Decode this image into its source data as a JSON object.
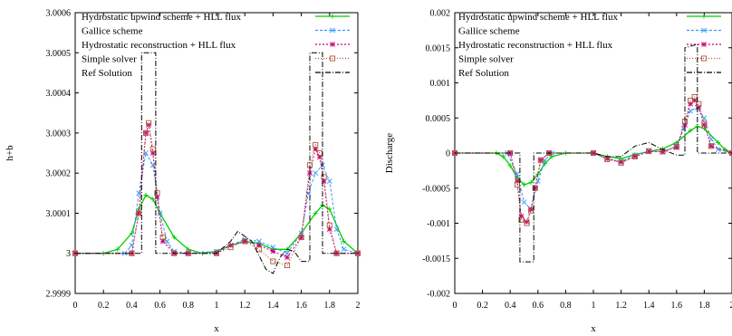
{
  "chart_data": [
    {
      "type": "line",
      "xlabel": "x",
      "ylabel": "h+b",
      "xlim": [
        0,
        2
      ],
      "ylim": [
        2.9999,
        3.0006
      ],
      "xticks": [
        "0",
        "0.2",
        "0.4",
        "0.6",
        "0.8",
        "1",
        "1.2",
        "1.4",
        "1.6",
        "1.8",
        "2"
      ],
      "yticks": [
        "2.9999",
        "3",
        "3.0001",
        "3.0002",
        "3.0003",
        "3.0004",
        "3.0005",
        "3.0006"
      ],
      "legend_position": "top-left",
      "series": [
        {
          "name": "Hydrostatic upwind scheme + HLL flux",
          "color": "#00cc00",
          "marker": "plus",
          "x": [
            0,
            0.2,
            0.3,
            0.4,
            0.45,
            0.5,
            0.55,
            0.6,
            0.7,
            0.8,
            0.9,
            1.0,
            1.1,
            1.2,
            1.3,
            1.4,
            1.5,
            1.6,
            1.7,
            1.75,
            1.8,
            1.9,
            2.0
          ],
          "y": [
            3.0,
            3.0,
            3.00001,
            3.00005,
            3.00011,
            3.000145,
            3.000135,
            3.0001,
            3.00004,
            3.00001,
            3.0,
            3.000005,
            3.00002,
            3.00003,
            3.000025,
            3.00001,
            3.00001,
            3.00005,
            3.0001,
            3.00012,
            3.00011,
            3.00003,
            3.0
          ]
        },
        {
          "name": "Gallice scheme",
          "color": "#3399ff",
          "marker": "cross",
          "x": [
            0,
            0.35,
            0.4,
            0.45,
            0.5,
            0.55,
            0.6,
            0.65,
            0.7,
            0.8,
            1.0,
            1.1,
            1.2,
            1.3,
            1.4,
            1.5,
            1.6,
            1.65,
            1.7,
            1.75,
            1.8,
            1.85,
            1.9,
            2.0
          ],
          "y": [
            3.0,
            3.0,
            3.00002,
            3.00015,
            3.00025,
            3.00022,
            3.0001,
            3.00003,
            3.000005,
            3.0,
            3.000005,
            3.00002,
            3.000035,
            3.00003,
            3.000015,
            3.0,
            3.00005,
            3.00015,
            3.0002,
            3.00022,
            3.00018,
            3.00006,
            3.00001,
            3.0
          ]
        },
        {
          "name": "Hydrostatic reconstruction + HLL flux",
          "color": "#cc0077",
          "marker": "star",
          "x": [
            0,
            0.4,
            0.45,
            0.5,
            0.52,
            0.55,
            0.58,
            0.62,
            0.7,
            0.8,
            1.0,
            1.1,
            1.2,
            1.3,
            1.4,
            1.5,
            1.6,
            1.66,
            1.7,
            1.73,
            1.76,
            1.8,
            1.85,
            2.0
          ],
          "y": [
            3.0,
            3.0,
            3.0001,
            3.0003,
            3.00032,
            3.00025,
            3.00014,
            3.00003,
            3.0,
            3.0,
            3.0,
            3.00002,
            3.00003,
            3.00002,
            3.000005,
            2.99999,
            3.00004,
            3.0002,
            3.00026,
            3.00024,
            3.00018,
            3.00006,
            3.0,
            3.0
          ]
        },
        {
          "name": "Simple solver",
          "color": "#aa5533",
          "marker": "square",
          "x": [
            0,
            0.4,
            0.45,
            0.5,
            0.52,
            0.55,
            0.58,
            0.62,
            0.7,
            0.8,
            1.0,
            1.1,
            1.2,
            1.3,
            1.4,
            1.5,
            1.6,
            1.66,
            1.7,
            1.73,
            1.76,
            1.8,
            1.85,
            2.0
          ],
          "y": [
            3.0,
            3.0,
            3.0001,
            3.0003,
            3.000325,
            3.00026,
            3.00015,
            3.00004,
            3.0,
            3.0,
            3.0,
            3.000015,
            3.00003,
            3.00001,
            2.99998,
            2.99997,
            3.00004,
            3.00022,
            3.00027,
            3.00025,
            3.00019,
            3.00007,
            3.0,
            3.0
          ]
        },
        {
          "name": "Ref Solution",
          "color": "#000000",
          "marker": "dashdot",
          "x": [
            0,
            0.47,
            0.47,
            0.57,
            0.57,
            1.0,
            1.1,
            1.15,
            1.25,
            1.35,
            1.4,
            1.45,
            1.5,
            1.55,
            1.6,
            1.66,
            1.66,
            1.75,
            1.75,
            2.0
          ],
          "y": [
            3.0,
            3.0,
            3.0005,
            3.0005,
            3.0,
            3.0,
            3.00003,
            3.000055,
            3.00003,
            2.99996,
            2.99995,
            2.99999,
            3.00001,
            3.000005,
            2.99998,
            2.99998,
            3.0005,
            3.0005,
            3.0,
            3.0
          ]
        }
      ]
    },
    {
      "type": "line",
      "xlabel": "x",
      "ylabel": "Discharge",
      "xlim": [
        0,
        2
      ],
      "ylim": [
        -0.002,
        0.002
      ],
      "xticks": [
        "0",
        "0.2",
        "0.4",
        "0.6",
        "0.8",
        "1",
        "1.2",
        "1.4",
        "1.6",
        "1.8",
        "2"
      ],
      "yticks": [
        "-0.002",
        "-0.0015",
        "-0.001",
        "-0.0005",
        "0",
        "0.0005",
        "0.001",
        "0.0015",
        "0.002"
      ],
      "legend_position": "top-left",
      "series": [
        {
          "name": "Hydrostatic upwind scheme + HLL flux",
          "color": "#00cc00",
          "marker": "plus",
          "x": [
            0,
            0.3,
            0.35,
            0.4,
            0.45,
            0.5,
            0.55,
            0.6,
            0.65,
            0.7,
            0.8,
            1.0,
            1.1,
            1.2,
            1.3,
            1.4,
            1.5,
            1.6,
            1.7,
            1.75,
            1.8,
            1.9,
            1.95,
            2.0
          ],
          "y": [
            0,
            0,
            -5e-05,
            -0.00018,
            -0.00035,
            -0.00045,
            -0.00042,
            -0.0003,
            -0.00015,
            -5e-05,
            0,
            0,
            -5e-05,
            -8e-05,
            -2e-05,
            2e-05,
            6e-05,
            0.00015,
            0.00032,
            0.00038,
            0.00035,
            0.00015,
            5e-05,
            0
          ]
        },
        {
          "name": "Gallice scheme",
          "color": "#3399ff",
          "marker": "cross",
          "x": [
            0,
            0.38,
            0.45,
            0.5,
            0.55,
            0.6,
            0.65,
            0.7,
            1.0,
            1.1,
            1.2,
            1.3,
            1.4,
            1.5,
            1.6,
            1.65,
            1.7,
            1.75,
            1.8,
            1.85,
            1.9,
            2.0
          ],
          "y": [
            0,
            0,
            -0.0003,
            -0.0007,
            -0.0008,
            -0.0004,
            -0.0001,
            0,
            0,
            -8e-05,
            -0.00012,
            -3e-05,
            3e-05,
            2e-05,
            0.0001,
            0.00035,
            0.0006,
            0.00065,
            0.0005,
            0.0002,
            5e-05,
            0
          ]
        },
        {
          "name": "Hydrostatic reconstruction + HLL flux",
          "color": "#cc0077",
          "marker": "star",
          "x": [
            0,
            0.4,
            0.45,
            0.48,
            0.52,
            0.55,
            0.58,
            0.62,
            0.68,
            1.0,
            1.1,
            1.2,
            1.3,
            1.4,
            1.5,
            1.6,
            1.66,
            1.7,
            1.73,
            1.76,
            1.8,
            1.85,
            2.0
          ],
          "y": [
            0,
            0,
            -0.0004,
            -0.0009,
            -0.00098,
            -0.0008,
            -0.0005,
            -0.0001,
            0,
            0,
            -8e-05,
            -0.00013,
            -5e-05,
            2e-05,
            2e-05,
            8e-05,
            0.0004,
            0.0007,
            0.00075,
            0.00065,
            0.0004,
            0.0001,
            0
          ]
        },
        {
          "name": "Simple solver",
          "color": "#aa5533",
          "marker": "square",
          "x": [
            0,
            0.4,
            0.45,
            0.48,
            0.52,
            0.55,
            0.58,
            0.62,
            0.68,
            1.0,
            1.1,
            1.2,
            1.3,
            1.4,
            1.5,
            1.6,
            1.66,
            1.7,
            1.73,
            1.76,
            1.8,
            1.85,
            2.0
          ],
          "y": [
            0,
            0,
            -0.00045,
            -0.00095,
            -0.001,
            -0.00082,
            -0.0005,
            -0.0001,
            0,
            0,
            -9e-05,
            -0.00014,
            -5e-05,
            3e-05,
            2e-05,
            9e-05,
            0.00045,
            0.00075,
            0.0008,
            0.0007,
            0.00042,
            0.0001,
            0
          ]
        },
        {
          "name": "Ref Solution",
          "color": "#000000",
          "marker": "dashdot",
          "x": [
            0,
            0.47,
            0.47,
            0.57,
            0.57,
            1.0,
            1.1,
            1.2,
            1.3,
            1.4,
            1.5,
            1.6,
            1.66,
            1.66,
            1.75,
            1.75,
            2.0
          ],
          "y": [
            0,
            0,
            -0.00155,
            -0.00155,
            0,
            0,
            -5e-05,
            -5e-05,
            0.0001,
            0.00015,
            5e-05,
            -3e-05,
            -3e-05,
            0.0015,
            0.00155,
            0,
            0
          ]
        }
      ]
    }
  ]
}
